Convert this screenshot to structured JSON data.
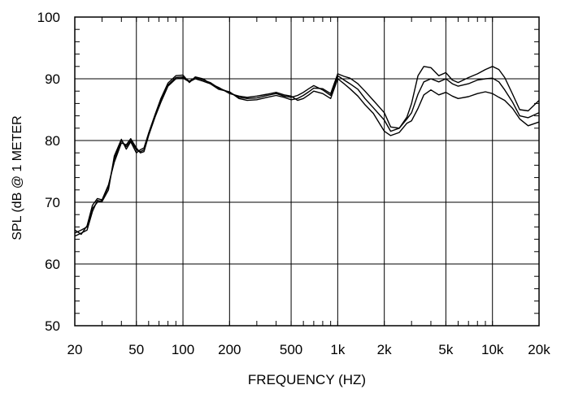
{
  "chart_data": {
    "type": "line",
    "title": "",
    "xlabel": "FREQUENCY  (HZ)",
    "ylabel": "SPL (dB @ 1 METER",
    "x_scale": "log",
    "xlim": [
      20,
      20000
    ],
    "ylim": [
      50,
      100
    ],
    "grid": true,
    "legend": "none",
    "x_ticks": [
      {
        "value": 20,
        "label": "20"
      },
      {
        "value": 50,
        "label": "50"
      },
      {
        "value": 100,
        "label": "100"
      },
      {
        "value": 200,
        "label": "200"
      },
      {
        "value": 500,
        "label": "500"
      },
      {
        "value": 1000,
        "label": "1k"
      },
      {
        "value": 2000,
        "label": "2k"
      },
      {
        "value": 5000,
        "label": "5k"
      },
      {
        "value": 10000,
        "label": "10k"
      },
      {
        "value": 20000,
        "label": "20k"
      }
    ],
    "y_ticks": [
      {
        "value": 50,
        "label": "50"
      },
      {
        "value": 60,
        "label": "60"
      },
      {
        "value": 70,
        "label": "70"
      },
      {
        "value": 80,
        "label": "80"
      },
      {
        "value": 90,
        "label": "90"
      },
      {
        "value": 100,
        "label": "100"
      }
    ],
    "line_color": "#000000",
    "series": [
      {
        "x": [
          20,
          22,
          24,
          26,
          28,
          30,
          33,
          36,
          40,
          43,
          46,
          50,
          53,
          56,
          60,
          66,
          72,
          80,
          90,
          100,
          110,
          120,
          135,
          150,
          170,
          200,
          230,
          260,
          300,
          350,
          400,
          450,
          500,
          550,
          600,
          650,
          700,
          800,
          900,
          1000,
          1100,
          1200,
          1350,
          1500,
          1700,
          2000,
          2200,
          2500,
          2800,
          3000,
          3300,
          3600,
          4000,
          4500,
          5000,
          5500,
          6000,
          7000,
          8000,
          9000,
          10000,
          11000,
          12000,
          13500,
          15000,
          17000,
          20000
        ],
        "values": [
          65,
          65.5,
          66,
          69,
          70,
          70.3,
          72.5,
          77,
          80,
          79,
          80,
          78.5,
          78.2,
          78.5,
          81,
          84,
          86.5,
          89,
          90.2,
          90.3,
          89.6,
          90.2,
          89.8,
          89.4,
          88.5,
          87.8,
          87,
          86.8,
          86.9,
          87.3,
          87.6,
          87.2,
          87,
          87.3,
          87.8,
          88.4,
          88.9,
          88.2,
          87.3,
          90.5,
          89.8,
          89.2,
          88.3,
          86.8,
          85.3,
          83.3,
          81.5,
          82,
          83.5,
          84.5,
          87.5,
          89.5,
          90,
          89.5,
          90,
          89.2,
          88.8,
          89.2,
          89.8,
          90,
          90.1,
          89.5,
          88.2,
          86.2,
          84,
          83.7,
          84.5
        ]
      },
      {
        "x": [
          20,
          22,
          24,
          26,
          28,
          30,
          33,
          36,
          40,
          43,
          46,
          50,
          53,
          56,
          60,
          66,
          72,
          80,
          90,
          100,
          110,
          120,
          135,
          150,
          170,
          200,
          230,
          260,
          300,
          350,
          400,
          450,
          500,
          550,
          600,
          650,
          700,
          800,
          900,
          1000,
          1100,
          1200,
          1350,
          1500,
          1700,
          2000,
          2200,
          2500,
          2800,
          3000,
          3300,
          3600,
          4000,
          4500,
          5000,
          5500,
          6000,
          7000,
          8000,
          9000,
          10000,
          11000,
          12000,
          13500,
          15000,
          17000,
          20000
        ],
        "values": [
          64.5,
          65,
          65.5,
          68.5,
          70.3,
          70.1,
          72,
          77.5,
          80.2,
          78.6,
          79.8,
          78,
          78.5,
          78.8,
          81.2,
          84.2,
          86.8,
          89.3,
          90.5,
          90.6,
          89.4,
          90.3,
          90,
          89.2,
          88.3,
          87.9,
          86.8,
          86.5,
          86.6,
          87,
          87.3,
          87,
          86.6,
          86.8,
          87.3,
          87.9,
          88.5,
          88.4,
          87.6,
          90.8,
          90.4,
          90.1,
          89.2,
          88,
          86.5,
          84.5,
          82.2,
          82,
          83.8,
          86,
          90.5,
          92,
          91.8,
          90.5,
          91,
          89.8,
          89.4,
          90.2,
          90.8,
          91.5,
          92,
          91.5,
          90.2,
          87.5,
          85,
          84.8,
          86.5
        ]
      },
      {
        "x": [
          20,
          22,
          24,
          26,
          28,
          30,
          33,
          36,
          40,
          43,
          46,
          50,
          53,
          56,
          60,
          66,
          72,
          80,
          90,
          100,
          110,
          120,
          135,
          150,
          170,
          200,
          230,
          260,
          300,
          350,
          400,
          450,
          500,
          550,
          600,
          650,
          700,
          800,
          900,
          1000,
          1100,
          1200,
          1350,
          1500,
          1700,
          2000,
          2200,
          2500,
          2800,
          3000,
          3300,
          3600,
          4000,
          4500,
          5000,
          5500,
          6000,
          7000,
          8000,
          9000,
          10000,
          11000,
          12000,
          13500,
          15000,
          17000,
          20000
        ],
        "values": [
          65.5,
          64.8,
          66.2,
          69.5,
          70.6,
          70.4,
          72.8,
          76.5,
          79.6,
          79.3,
          80.3,
          78.8,
          78,
          78.2,
          80.8,
          83.8,
          86.2,
          88.8,
          90,
          90.1,
          89.5,
          90,
          89.6,
          89.2,
          88.6,
          87.6,
          87.2,
          87,
          87.2,
          87.5,
          87.8,
          87.4,
          87.2,
          86.5,
          86.8,
          87.4,
          88,
          87.6,
          86.8,
          90,
          89.2,
          88.4,
          87.2,
          85.8,
          84.4,
          81.5,
          80.8,
          81.3,
          82.8,
          83.2,
          85.2,
          87.4,
          88.2,
          87.4,
          87.8,
          87.2,
          86.8,
          87.1,
          87.6,
          87.9,
          87.6,
          87,
          86.5,
          85.2,
          83.5,
          82.4,
          83
        ]
      }
    ]
  }
}
